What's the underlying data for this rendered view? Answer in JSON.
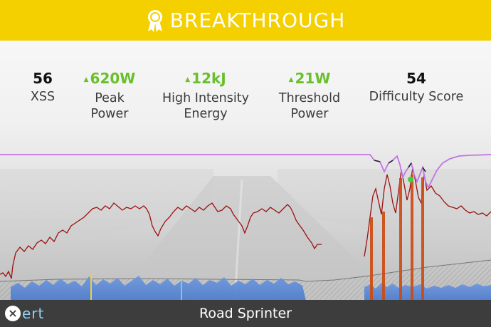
{
  "banner": {
    "title": "BREAKTHROUGH",
    "icon": "award-ribbon-icon",
    "color": "#f4d000"
  },
  "stats": [
    {
      "value": "56",
      "label_lines": [
        "XSS"
      ],
      "trend": ""
    },
    {
      "value": "620W",
      "label_lines": [
        "Peak",
        "Power"
      ],
      "trend": "up"
    },
    {
      "value": "12kJ",
      "label_lines": [
        "High Intensity",
        "Energy"
      ],
      "trend": "up"
    },
    {
      "value": "21W",
      "label_lines": [
        "Threshold",
        "Power"
      ],
      "trend": "up"
    },
    {
      "value": "54",
      "label_lines": [
        "Difficulty Score"
      ],
      "trend": ""
    }
  ],
  "colors": {
    "positive": "#6abf2c",
    "power_line": "#9c1010",
    "mpa_line": "#c373e6",
    "breakthrough_marker": "#3fd13f"
  },
  "footer": {
    "logo_text": "ert",
    "logo_icon": "x-icon",
    "title": "Road Sprinter"
  }
}
